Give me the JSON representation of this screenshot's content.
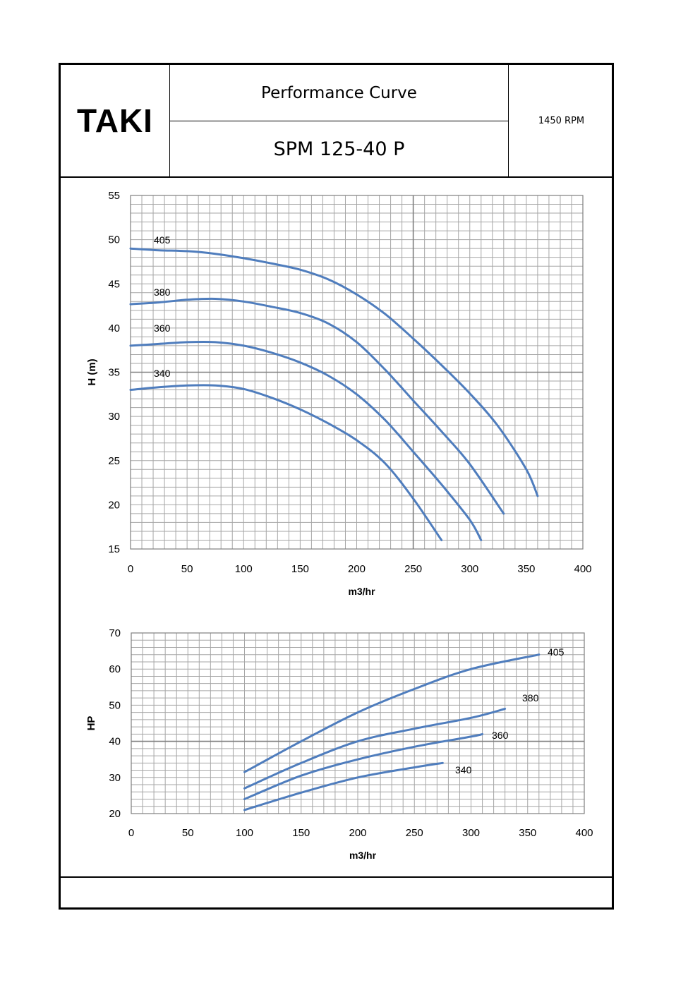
{
  "header": {
    "logo": "TAKI",
    "title": "Performance Curve",
    "model": "SPM 125-40 P",
    "speed": "1450  RPM"
  },
  "colors": {
    "curve": "#4f7dbd",
    "grid_minor": "#a6a6a6",
    "grid_major": "#7f7f7f"
  },
  "chart_data": [
    {
      "type": "line",
      "xlabel": "m3/hr",
      "ylabel": "H (m)",
      "xlim": [
        0,
        400
      ],
      "ylim": [
        15,
        55
      ],
      "xticks": [
        0,
        50,
        100,
        150,
        200,
        250,
        300,
        350,
        400
      ],
      "yticks": [
        15,
        20,
        25,
        30,
        35,
        40,
        45,
        50,
        55
      ],
      "grid": true,
      "series": [
        {
          "name": "405",
          "x": [
            0,
            25,
            50,
            75,
            100,
            125,
            150,
            175,
            200,
            225,
            250,
            275,
            300,
            325,
            350,
            360
          ],
          "y": [
            49,
            48.8,
            48.7,
            48.4,
            47.9,
            47.3,
            46.6,
            45.5,
            43.8,
            41.6,
            38.8,
            35.8,
            32.6,
            28.9,
            24,
            21
          ]
        },
        {
          "name": "380",
          "x": [
            0,
            25,
            50,
            75,
            100,
            125,
            150,
            175,
            200,
            225,
            250,
            275,
            300,
            330
          ],
          "y": [
            42.7,
            42.9,
            43.2,
            43.3,
            43,
            42.4,
            41.7,
            40.5,
            38.4,
            35.3,
            31.8,
            28.3,
            24.6,
            19
          ]
        },
        {
          "name": "360",
          "x": [
            0,
            25,
            50,
            75,
            100,
            125,
            150,
            175,
            200,
            225,
            250,
            275,
            300,
            310
          ],
          "y": [
            38,
            38.2,
            38.4,
            38.4,
            38,
            37.2,
            36.1,
            34.6,
            32.5,
            29.6,
            26,
            22.3,
            18.3,
            16
          ]
        },
        {
          "name": "340",
          "x": [
            0,
            25,
            50,
            75,
            100,
            125,
            150,
            175,
            200,
            225,
            250,
            275
          ],
          "y": [
            33,
            33.3,
            33.5,
            33.5,
            33.1,
            32.1,
            30.8,
            29.2,
            27.3,
            24.7,
            20.7,
            16
          ]
        }
      ]
    },
    {
      "type": "line",
      "xlabel": "m3/hr",
      "ylabel": "HP",
      "xlim": [
        0,
        400
      ],
      "ylim": [
        20,
        70
      ],
      "xticks": [
        0,
        50,
        100,
        150,
        200,
        250,
        300,
        350,
        400
      ],
      "yticks": [
        20,
        30,
        40,
        50,
        60,
        70
      ],
      "grid": true,
      "series": [
        {
          "name": "405",
          "x": [
            100,
            150,
            200,
            250,
            300,
            360
          ],
          "y": [
            31.5,
            40,
            48,
            54.5,
            60,
            64
          ]
        },
        {
          "name": "380",
          "x": [
            100,
            150,
            200,
            250,
            300,
            330
          ],
          "y": [
            27,
            34,
            40,
            43.5,
            46.5,
            49
          ]
        },
        {
          "name": "360",
          "x": [
            100,
            150,
            200,
            250,
            300,
            310
          ],
          "y": [
            24,
            30.5,
            35,
            38.5,
            41.3,
            42
          ]
        },
        {
          "name": "340",
          "x": [
            100,
            150,
            200,
            250,
            275
          ],
          "y": [
            21,
            25.8,
            30,
            32.8,
            34
          ]
        }
      ]
    }
  ]
}
